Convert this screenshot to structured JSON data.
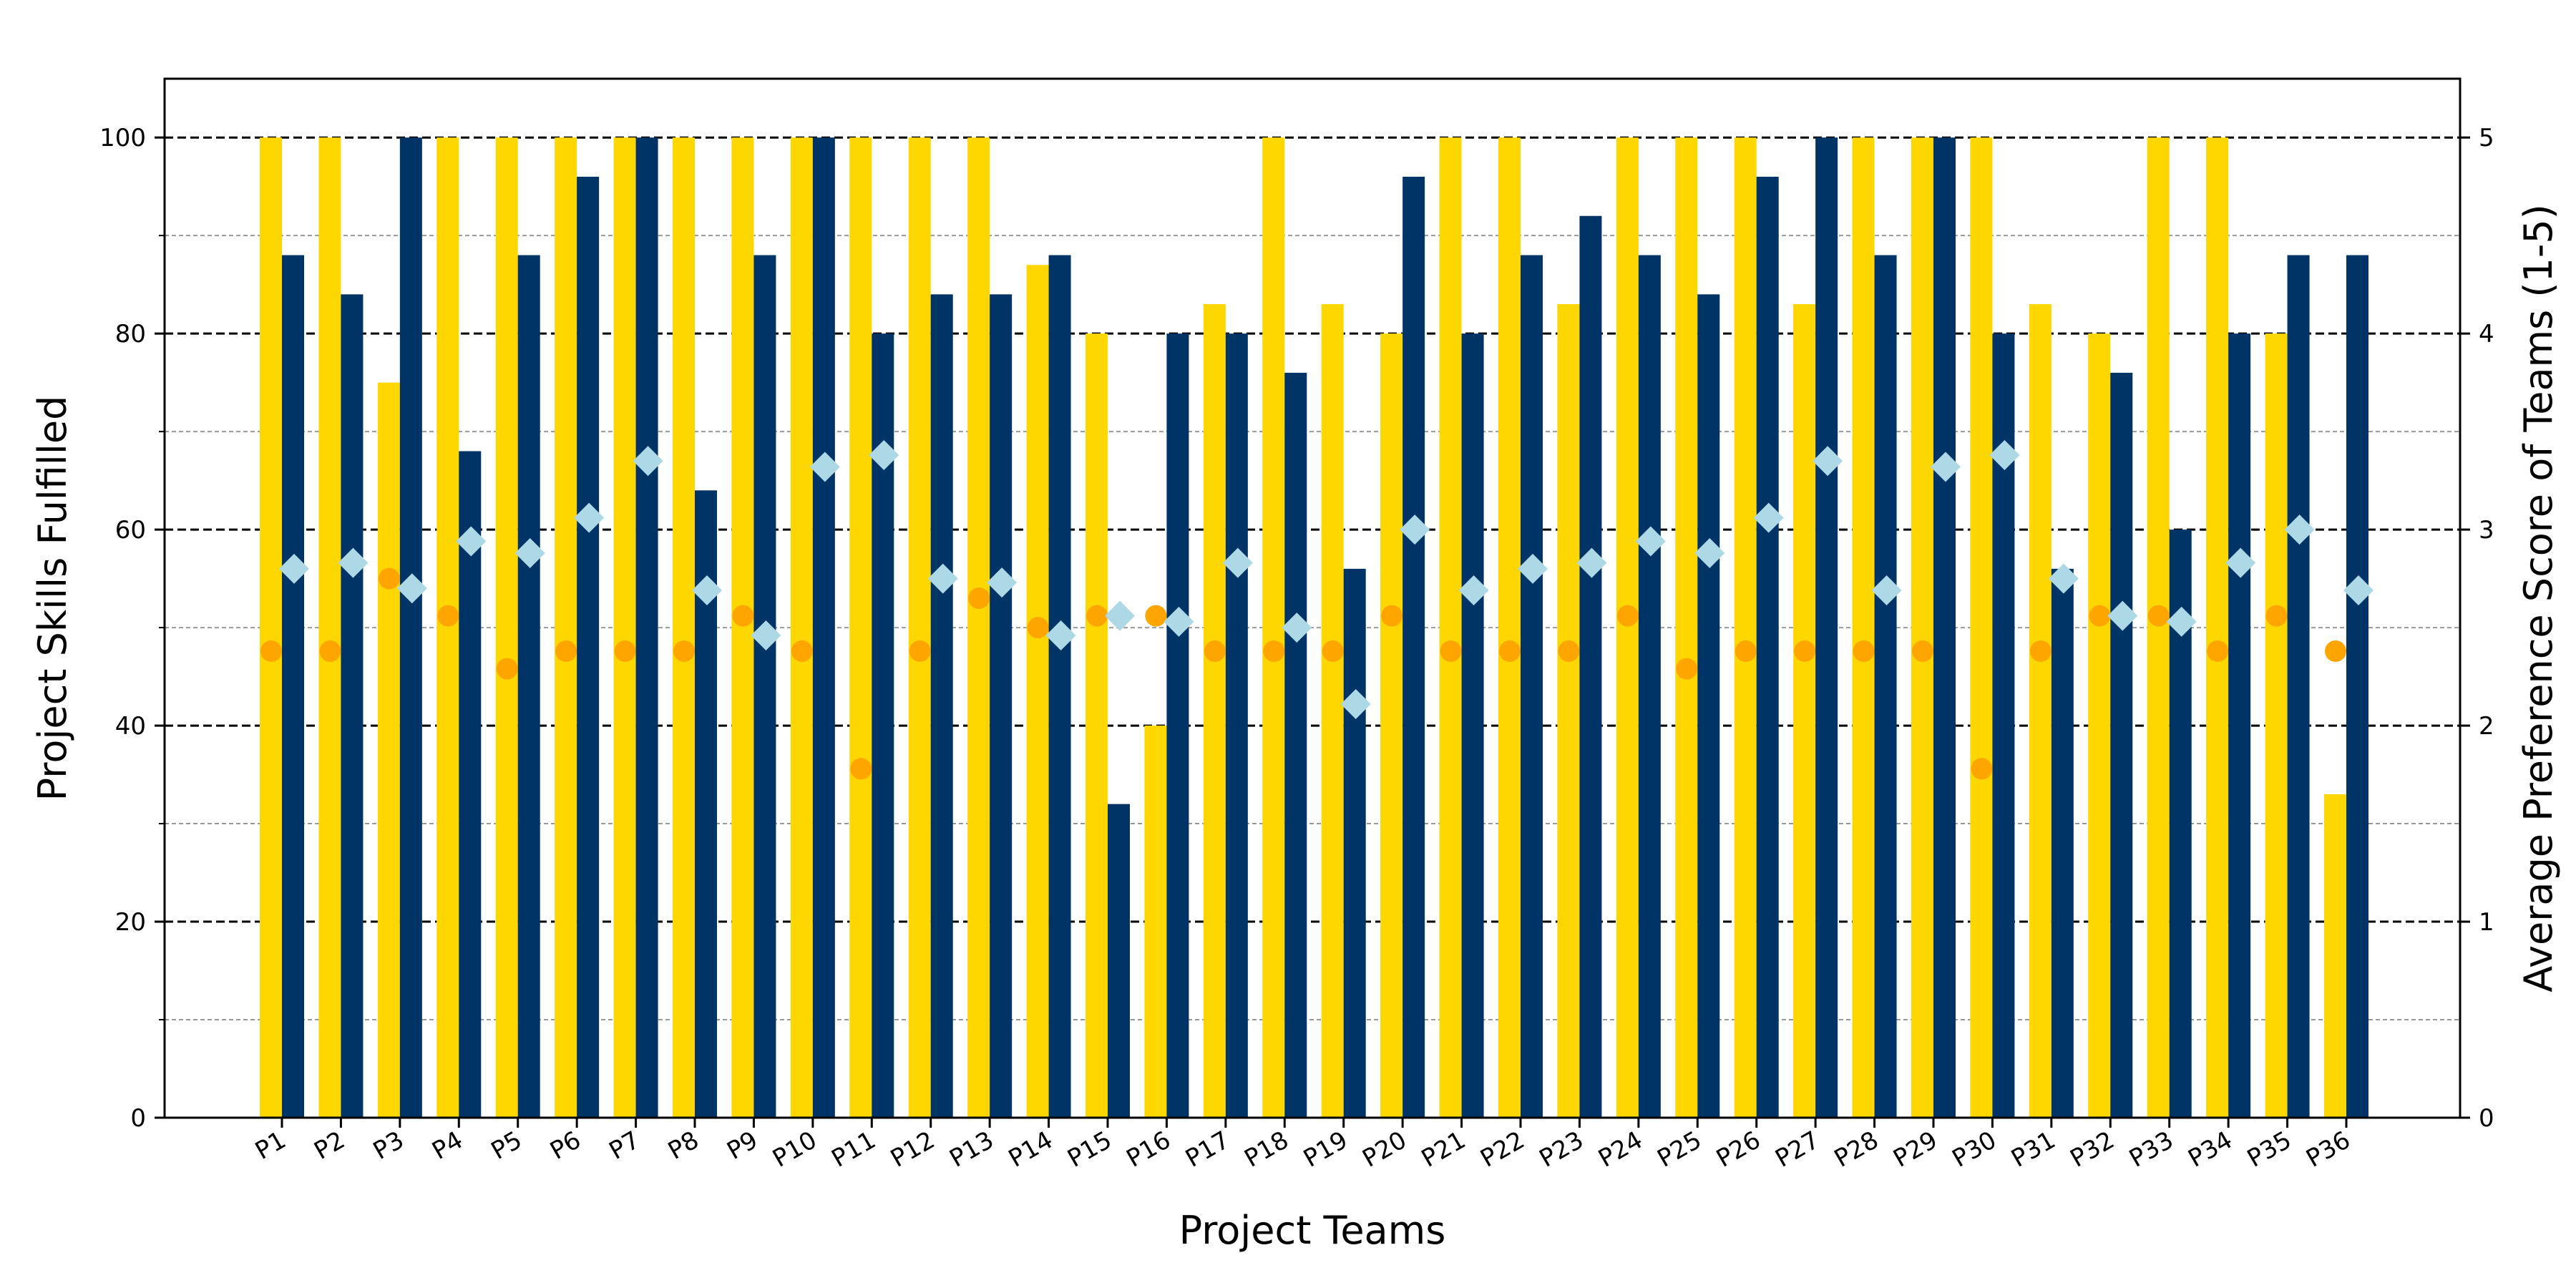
{
  "chart_data": {
    "type": "bar",
    "xlabel": "Project Teams",
    "ylabel": "Project Skills Fulfilled",
    "y2label": "Average Preference Score of Teams (1-5)",
    "ylim": [
      0,
      106
    ],
    "y2lim": [
      0,
      5.3
    ],
    "yticks": [
      0,
      20,
      40,
      60,
      80,
      100
    ],
    "y2ticks": [
      0,
      1,
      2,
      3,
      4,
      5
    ],
    "grid": "horizontal dashed (major black, minor grey)",
    "categories": [
      "P1",
      "P2",
      "P3",
      "P4",
      "P5",
      "P6",
      "P7",
      "P8",
      "P9",
      "P10",
      "P11",
      "P12",
      "P13",
      "P14",
      "P15",
      "P16",
      "P17",
      "P18",
      "P19",
      "P20",
      "P21",
      "P22",
      "P23",
      "P24",
      "P25",
      "P26",
      "P27",
      "P28",
      "P29",
      "P30",
      "P31",
      "P32",
      "P33",
      "P34",
      "P35",
      "P36"
    ],
    "series": [
      {
        "kind": "bar",
        "axis": "left",
        "color": "#FFD700",
        "values": [
          100,
          100,
          75,
          100,
          100,
          100,
          100,
          100,
          100,
          100,
          100,
          100,
          100,
          87,
          80,
          40,
          83,
          100,
          83,
          80,
          100,
          100,
          83,
          100,
          100,
          100,
          83,
          100,
          100,
          100,
          83,
          80,
          100,
          100,
          80,
          33
        ]
      },
      {
        "kind": "bar",
        "axis": "left",
        "color": "#003366",
        "values": [
          88,
          84,
          100,
          68,
          88,
          96,
          100,
          64,
          88,
          100,
          80,
          84,
          84,
          88,
          32,
          80,
          80,
          76,
          56,
          96,
          80,
          88,
          92,
          88,
          84,
          96,
          100,
          88,
          100,
          80,
          56,
          76,
          60,
          80,
          88,
          88
        ]
      },
      {
        "kind": "scatter",
        "axis": "right",
        "marker": "circle",
        "color": "#FFA500",
        "values": [
          2.38,
          2.38,
          2.75,
          2.56,
          2.29,
          2.38,
          2.38,
          2.38,
          2.56,
          2.38,
          1.78,
          2.38,
          2.65,
          2.5,
          2.56,
          2.56,
          2.38,
          2.38,
          2.38,
          2.56,
          2.38,
          2.38,
          2.38,
          2.56,
          2.29,
          2.38,
          2.38,
          2.38,
          2.38,
          1.78,
          2.38,
          2.56,
          2.56,
          2.38,
          2.56,
          2.38
        ]
      },
      {
        "kind": "scatter",
        "axis": "right",
        "marker": "diamond",
        "color": "#ADD8E6",
        "values": [
          2.8,
          2.83,
          2.7,
          2.94,
          2.88,
          3.06,
          3.35,
          2.69,
          2.46,
          3.32,
          3.38,
          2.75,
          2.73,
          2.46,
          2.56,
          2.53,
          2.83,
          2.5,
          2.11,
          3.0,
          2.69,
          2.8,
          2.83,
          2.94,
          2.88,
          3.06,
          3.35,
          2.69,
          3.32,
          3.38,
          2.75,
          2.56,
          2.53,
          2.83,
          3.0,
          2.69
        ]
      }
    ]
  }
}
